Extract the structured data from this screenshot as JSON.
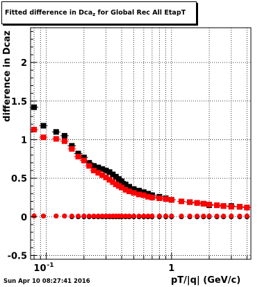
{
  "title": {
    "main": "Fitted difference in Dca",
    "sub": "z",
    "rest": " for Global Rec All EtapT"
  },
  "footer_timestamp": "Sun Apr 10 08:27:41 2016",
  "chart_data": {
    "type": "scatter",
    "title": "Fitted difference in Dcaz for Global Rec All EtapT",
    "xlabel": "pT/|q| (GeV/c)",
    "ylabel": "difference in Dcaz",
    "x_scale": "log",
    "xlim": [
      0.075,
      4.3
    ],
    "ylim": [
      -0.55,
      2.45
    ],
    "grid": true,
    "x_ticks": [
      {
        "v": 0.1,
        "label": "10",
        "exp": "-1"
      },
      {
        "v": 1,
        "label": "1"
      }
    ],
    "y_ticks": [
      -0.5,
      0,
      0.5,
      1,
      1.5,
      2
    ],
    "y_tick_labels": [
      "-0.5",
      "0",
      "0.5",
      "1",
      "1.5",
      "2"
    ],
    "colors": {
      "black_series": "#000000",
      "red_series": "#ff0000"
    },
    "series": [
      {
        "x": [
          0.08,
          0.095,
          0.12,
          0.14,
          0.16,
          0.18,
          0.2,
          0.22,
          0.24,
          0.26,
          0.28,
          0.3,
          0.32,
          0.34,
          0.36,
          0.38,
          0.4,
          0.43,
          0.46,
          0.5,
          0.55,
          0.6,
          0.65,
          0.7,
          0.8,
          0.9,
          1.0,
          1.2,
          1.4,
          1.6,
          1.8,
          2.0,
          2.3,
          2.6,
          3.0,
          3.5,
          4.0
        ],
        "y": [
          1.42,
          1.18,
          1.1,
          1.05,
          0.92,
          0.82,
          0.77,
          0.7,
          0.66,
          0.64,
          0.62,
          0.6,
          0.58,
          0.55,
          0.52,
          0.49,
          0.46,
          0.42,
          0.39,
          0.36,
          0.34,
          0.32,
          0.3,
          0.28,
          0.26,
          0.24,
          0.22,
          0.2,
          0.19,
          0.18,
          0.17,
          0.15,
          0.15,
          0.14,
          0.14,
          0.13,
          0.12
        ],
        "color": "black_series"
      },
      {
        "x": [
          0.08,
          0.095,
          0.12,
          0.14,
          0.16,
          0.18,
          0.2,
          0.22,
          0.24,
          0.26,
          0.28,
          0.3,
          0.32,
          0.34,
          0.36,
          0.38,
          0.4,
          0.43,
          0.46,
          0.5,
          0.55,
          0.6,
          0.65,
          0.7,
          0.8,
          0.9,
          1.0,
          1.2,
          1.4,
          1.6,
          1.8,
          2.0,
          2.3,
          2.6,
          3.0,
          3.5,
          4.0
        ],
        "y": [
          1.13,
          1.03,
          1.01,
          0.98,
          0.88,
          0.78,
          0.73,
          0.66,
          0.6,
          0.57,
          0.54,
          0.51,
          0.48,
          0.45,
          0.42,
          0.4,
          0.38,
          0.35,
          0.33,
          0.31,
          0.29,
          0.28,
          0.26,
          0.25,
          0.24,
          0.23,
          0.22,
          0.2,
          0.19,
          0.18,
          0.17,
          0.16,
          0.15,
          0.14,
          0.13,
          0.13,
          0.12
        ],
        "color": "red_series"
      },
      {
        "x": [
          0.08,
          0.095,
          0.12,
          0.14,
          0.16,
          0.18,
          0.2,
          0.22,
          0.24,
          0.26,
          0.28,
          0.3,
          0.32,
          0.34,
          0.36,
          0.38,
          0.4,
          0.43,
          0.46,
          0.5,
          0.55,
          0.6,
          0.65,
          0.7,
          0.8,
          0.9,
          1.0,
          1.2,
          1.4,
          1.6,
          1.8,
          2.0,
          2.3,
          2.6,
          3.0,
          3.5,
          4.0
        ],
        "y": [
          0.01,
          0.01,
          0.01,
          0.01,
          0.0,
          0.0,
          0.0,
          0.0,
          0.0,
          0.0,
          0.0,
          0.0,
          0.0,
          0.0,
          0.0,
          0.0,
          0.0,
          0.0,
          0.0,
          0.0,
          0.0,
          0.0,
          0.0,
          0.0,
          0.0,
          0.0,
          0.0,
          0.0,
          0.0,
          0.0,
          0.0,
          0.0,
          0.0,
          0.0,
          0.0,
          0.0,
          0.0
        ],
        "color": "black_series",
        "marker": "circle"
      },
      {
        "x": [
          0.08,
          0.095,
          0.12,
          0.14,
          0.16,
          0.18,
          0.2,
          0.22,
          0.24,
          0.26,
          0.28,
          0.3,
          0.32,
          0.34,
          0.36,
          0.38,
          0.4,
          0.43,
          0.46,
          0.5,
          0.55,
          0.6,
          0.65,
          0.7,
          0.8,
          0.9,
          1.0,
          1.2,
          1.4,
          1.6,
          1.8,
          2.0,
          2.3,
          2.6,
          3.0,
          3.5,
          4.0
        ],
        "y": [
          0.01,
          0.01,
          0.01,
          0.01,
          0.01,
          0.01,
          0.01,
          0.01,
          0.01,
          0.01,
          0.01,
          0.01,
          0.01,
          0.01,
          0.01,
          0.01,
          0.01,
          0.01,
          0.01,
          0.01,
          0.01,
          0.01,
          0.01,
          0.01,
          0.01,
          0.01,
          0.01,
          0.01,
          0.01,
          0.01,
          0.01,
          0.01,
          0.01,
          0.01,
          0.01,
          0.01,
          0.01
        ],
        "color": "red_series",
        "marker": "circle"
      }
    ]
  }
}
